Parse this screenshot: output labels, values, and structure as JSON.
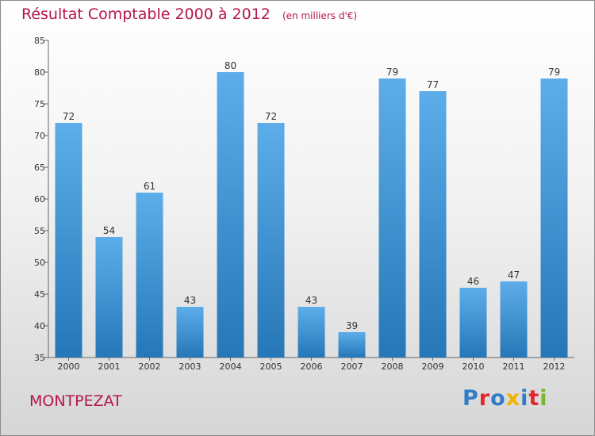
{
  "chart_data": {
    "type": "bar",
    "title": "Résultat Comptable 2000 à 2012",
    "subtitle": "(en milliers d'€)",
    "categories": [
      "2000",
      "2001",
      "2002",
      "2003",
      "2004",
      "2005",
      "2006",
      "2007",
      "2008",
      "2009",
      "2010",
      "2011",
      "2012"
    ],
    "values": [
      72,
      54,
      61,
      43,
      80,
      72,
      43,
      39,
      79,
      77,
      46,
      47,
      79
    ],
    "ylim": [
      35,
      85
    ],
    "yticks": [
      35,
      40,
      45,
      50,
      55,
      60,
      65,
      70,
      75,
      80,
      85
    ],
    "grid": false,
    "colors": {
      "bar_light": "#5dadea",
      "bar_dark": "#2677b7",
      "title": "#b5154e"
    }
  },
  "commune": "MONTPEZAT",
  "brand": {
    "text": "Proxiti",
    "letter_colors": [
      "#2f7dc5",
      "#e0282f",
      "#2f7dc5",
      "#f0b400",
      "#2f7dc5",
      "#e0282f",
      "#74b62c"
    ]
  }
}
